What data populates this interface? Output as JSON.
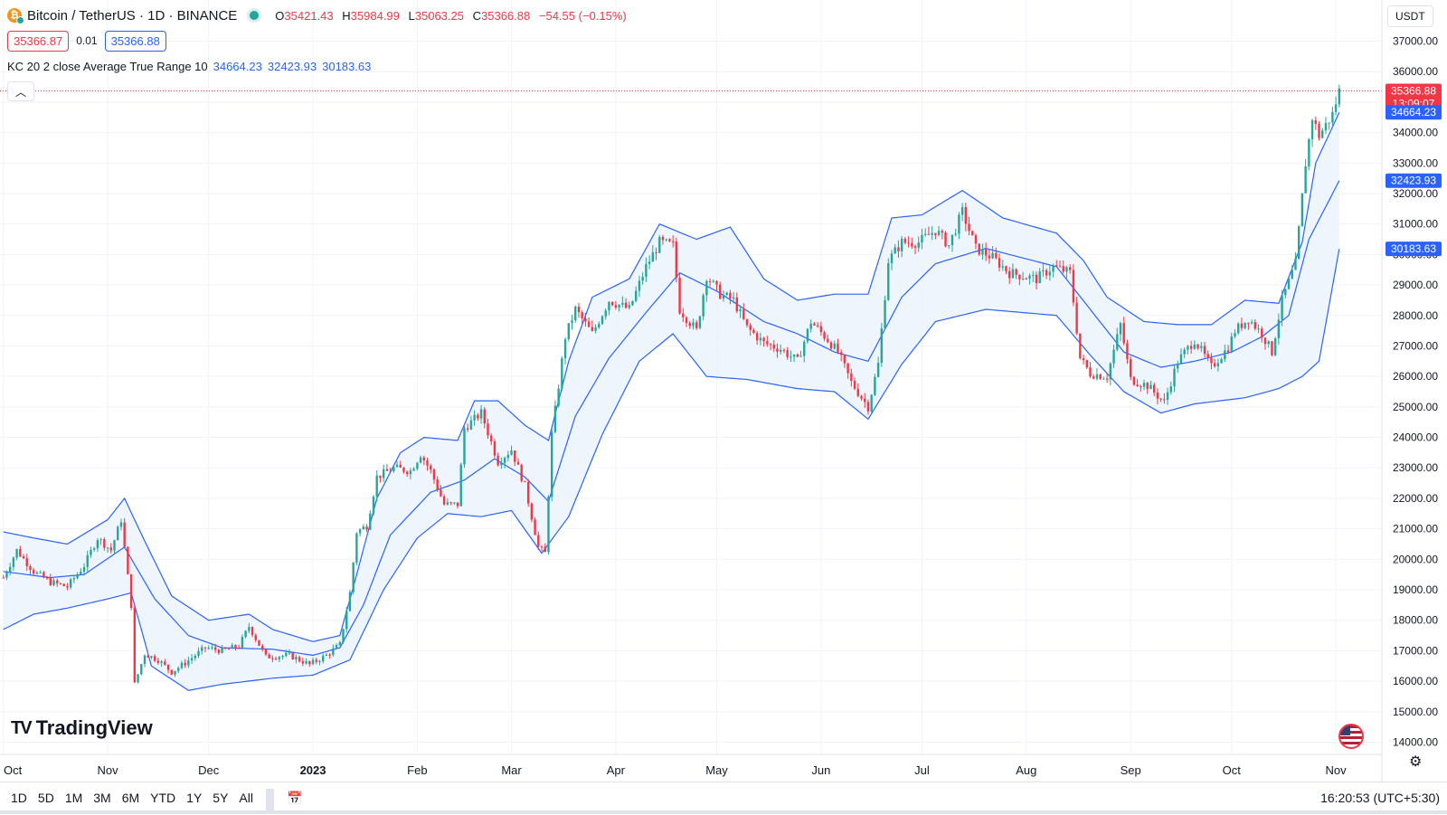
{
  "header": {
    "symbol": "Bitcoin / TetherUS · 1D · BINANCE",
    "ohlc": [
      {
        "k": "O",
        "v": "35421.43"
      },
      {
        "k": "H",
        "v": "35984.99"
      },
      {
        "k": "L",
        "v": "35063.25"
      },
      {
        "k": "C",
        "v": "35366.88"
      }
    ],
    "change": "−54.55 (−0.15%)",
    "sell_price": "35366.87",
    "spread": "0.01",
    "buy_price": "35366.88"
  },
  "indicator": {
    "label": "KC 20 2 close Average True Range 10",
    "upper": "34664.23",
    "middle": "32423.93",
    "lower": "30183.63"
  },
  "currency": "USDT",
  "bottom_bar": {
    "ranges": [
      "1D",
      "5D",
      "1M",
      "3M",
      "6M",
      "YTD",
      "1Y",
      "5Y",
      "All"
    ],
    "time": "16:20:53 (UTC+5:30)"
  },
  "watermark": "TradingView",
  "price_tags": {
    "last": "35366.88",
    "countdown": "13:09:07",
    "upper": "34664.23",
    "middle": "32423.93",
    "lower": "30183.63"
  },
  "colors": {
    "up": "#26a69a",
    "down": "#f23645",
    "band": "#2962ff",
    "fill": "#eaf3fc"
  },
  "chart_data": {
    "type": "candlestick",
    "title": "",
    "x_labels": [
      "Oct",
      "Nov",
      "Dec",
      "2023",
      "Feb",
      "Mar",
      "Apr",
      "May",
      "Jun",
      "Jul",
      "Aug",
      "Sep",
      "Oct",
      "Nov"
    ],
    "y_ticks": [
      "37000.00",
      "36000.00",
      "35000.00",
      "34000.00",
      "33000.00",
      "32000.00",
      "31000.00",
      "30000.00",
      "29000.00",
      "28000.00",
      "27000.00",
      "26000.00",
      "25000.00",
      "24000.00",
      "23000.00",
      "22000.00",
      "21000.00",
      "20000.00",
      "19000.00",
      "18000.00",
      "17000.00",
      "16000.00",
      "15000.00",
      "14000.00"
    ],
    "ylim": [
      13600,
      38350
    ],
    "grid": true,
    "close_series": {
      "name": "BTCUSDT",
      "points": [
        [
          "2022-10-01",
          19400
        ],
        [
          "2022-10-05",
          20300
        ],
        [
          "2022-10-10",
          19600
        ],
        [
          "2022-10-15",
          19250
        ],
        [
          "2022-10-20",
          19100
        ],
        [
          "2022-10-25",
          19800
        ],
        [
          "2022-10-29",
          20700
        ],
        [
          "2022-11-02",
          20300
        ],
        [
          "2022-11-05",
          21300
        ],
        [
          "2022-11-08",
          18500
        ],
        [
          "2022-11-09",
          15900
        ],
        [
          "2022-11-12",
          16900
        ],
        [
          "2022-11-16",
          16700
        ],
        [
          "2022-11-20",
          16300
        ],
        [
          "2022-11-24",
          16600
        ],
        [
          "2022-11-30",
          17100
        ],
        [
          "2022-12-05",
          17000
        ],
        [
          "2022-12-10",
          17150
        ],
        [
          "2022-12-13",
          17800
        ],
        [
          "2022-12-18",
          16800
        ],
        [
          "2022-12-25",
          16850
        ],
        [
          "2022-12-31",
          16550
        ],
        [
          "2023-01-05",
          16850
        ],
        [
          "2023-01-09",
          17200
        ],
        [
          "2023-01-12",
          18900
        ],
        [
          "2023-01-14",
          20900
        ],
        [
          "2023-01-17",
          21100
        ],
        [
          "2023-01-20",
          22700
        ],
        [
          "2023-01-25",
          23000
        ],
        [
          "2023-01-30",
          22900
        ],
        [
          "2023-02-02",
          23450
        ],
        [
          "2023-02-05",
          22900
        ],
        [
          "2023-02-09",
          21800
        ],
        [
          "2023-02-13",
          21800
        ],
        [
          "2023-02-15",
          24300
        ],
        [
          "2023-02-20",
          24800
        ],
        [
          "2023-02-25",
          23200
        ],
        [
          "2023-03-01",
          23600
        ],
        [
          "2023-03-05",
          22400
        ],
        [
          "2023-03-09",
          20400
        ],
        [
          "2023-03-11",
          20200
        ],
        [
          "2023-03-13",
          24100
        ],
        [
          "2023-03-17",
          27300
        ],
        [
          "2023-03-20",
          28200
        ],
        [
          "2023-03-25",
          27400
        ],
        [
          "2023-03-30",
          28500
        ],
        [
          "2023-04-05",
          28200
        ],
        [
          "2023-04-10",
          29600
        ],
        [
          "2023-04-14",
          30400
        ],
        [
          "2023-04-18",
          30300
        ],
        [
          "2023-04-20",
          28200
        ],
        [
          "2023-04-25",
          27500
        ],
        [
          "2023-04-28",
          29300
        ],
        [
          "2023-05-02",
          28700
        ],
        [
          "2023-05-06",
          28500
        ],
        [
          "2023-05-10",
          27600
        ],
        [
          "2023-05-15",
          27100
        ],
        [
          "2023-05-20",
          26900
        ],
        [
          "2023-05-25",
          26500
        ],
        [
          "2023-05-29",
          27800
        ],
        [
          "2023-06-03",
          27200
        ],
        [
          "2023-06-06",
          26800
        ],
        [
          "2023-06-10",
          25800
        ],
        [
          "2023-06-15",
          25000
        ],
        [
          "2023-06-18",
          26400
        ],
        [
          "2023-06-21",
          29800
        ],
        [
          "2023-06-25",
          30400
        ],
        [
          "2023-06-30",
          30400
        ],
        [
          "2023-07-05",
          30800
        ],
        [
          "2023-07-09",
          30300
        ],
        [
          "2023-07-13",
          31400
        ],
        [
          "2023-07-17",
          30200
        ],
        [
          "2023-07-22",
          29900
        ],
        [
          "2023-07-27",
          29400
        ],
        [
          "2023-07-31",
          29300
        ],
        [
          "2023-08-04",
          29200
        ],
        [
          "2023-08-09",
          29600
        ],
        [
          "2023-08-14",
          29400
        ],
        [
          "2023-08-17",
          26600
        ],
        [
          "2023-08-20",
          26100
        ],
        [
          "2023-08-25",
          26000
        ],
        [
          "2023-08-29",
          27700
        ],
        [
          "2023-09-01",
          25900
        ],
        [
          "2023-09-06",
          25700
        ],
        [
          "2023-09-11",
          25150
        ],
        [
          "2023-09-15",
          26500
        ],
        [
          "2023-09-20",
          27200
        ],
        [
          "2023-09-25",
          26300
        ],
        [
          "2023-09-30",
          26950
        ],
        [
          "2023-10-02",
          27500
        ],
        [
          "2023-10-06",
          27900
        ],
        [
          "2023-10-10",
          27400
        ],
        [
          "2023-10-13",
          26800
        ],
        [
          "2023-10-16",
          28500
        ],
        [
          "2023-10-20",
          29700
        ],
        [
          "2023-10-23",
          33000
        ],
        [
          "2023-10-25",
          34500
        ],
        [
          "2023-10-27",
          33900
        ],
        [
          "2023-10-31",
          34600
        ],
        [
          "2023-11-02",
          35367
        ]
      ]
    },
    "keltner": {
      "upper_points": [
        [
          "2022-10-01",
          20900
        ],
        [
          "2022-10-10",
          20700
        ],
        [
          "2022-10-20",
          20500
        ],
        [
          "2022-11-01",
          21300
        ],
        [
          "2022-11-06",
          22000
        ],
        [
          "2022-11-12",
          20600
        ],
        [
          "2022-11-20",
          18800
        ],
        [
          "2022-12-01",
          18000
        ],
        [
          "2022-12-13",
          18200
        ],
        [
          "2022-12-20",
          17700
        ],
        [
          "2023-01-01",
          17300
        ],
        [
          "2023-01-09",
          17500
        ],
        [
          "2023-01-14",
          19500
        ],
        [
          "2023-01-20",
          22000
        ],
        [
          "2023-01-27",
          23500
        ],
        [
          "2023-02-03",
          24000
        ],
        [
          "2023-02-13",
          23900
        ],
        [
          "2023-02-18",
          25200
        ],
        [
          "2023-02-25",
          25200
        ],
        [
          "2023-03-05",
          24400
        ],
        [
          "2023-03-12",
          23900
        ],
        [
          "2023-03-18",
          26500
        ],
        [
          "2023-03-25",
          28600
        ],
        [
          "2023-04-05",
          29200
        ],
        [
          "2023-04-14",
          31000
        ],
        [
          "2023-04-25",
          30500
        ],
        [
          "2023-05-05",
          30900
        ],
        [
          "2023-05-15",
          29200
        ],
        [
          "2023-05-25",
          28500
        ],
        [
          "2023-06-05",
          28700
        ],
        [
          "2023-06-15",
          28700
        ],
        [
          "2023-06-22",
          31200
        ],
        [
          "2023-07-01",
          31300
        ],
        [
          "2023-07-13",
          32100
        ],
        [
          "2023-07-25",
          31200
        ],
        [
          "2023-08-10",
          30700
        ],
        [
          "2023-08-18",
          29800
        ],
        [
          "2023-08-25",
          28600
        ],
        [
          "2023-09-05",
          27800
        ],
        [
          "2023-09-15",
          27700
        ],
        [
          "2023-09-25",
          27700
        ],
        [
          "2023-10-05",
          28500
        ],
        [
          "2023-10-15",
          28400
        ],
        [
          "2023-10-22",
          30400
        ],
        [
          "2023-10-26",
          33000
        ],
        [
          "2023-11-02",
          34664
        ]
      ],
      "middle_points": [
        [
          "2022-10-01",
          19600
        ],
        [
          "2022-10-15",
          19400
        ],
        [
          "2022-10-25",
          19500
        ],
        [
          "2022-11-06",
          20400
        ],
        [
          "2022-11-15",
          18700
        ],
        [
          "2022-11-25",
          17500
        ],
        [
          "2022-12-05",
          17100
        ],
        [
          "2022-12-20",
          17050
        ],
        [
          "2023-01-01",
          16850
        ],
        [
          "2023-01-09",
          17100
        ],
        [
          "2023-01-16",
          18500
        ],
        [
          "2023-01-24",
          20800
        ],
        [
          "2023-02-05",
          22200
        ],
        [
          "2023-02-15",
          22600
        ],
        [
          "2023-02-24",
          23300
        ],
        [
          "2023-03-05",
          22700
        ],
        [
          "2023-03-12",
          21900
        ],
        [
          "2023-03-20",
          24700
        ],
        [
          "2023-03-30",
          26600
        ],
        [
          "2023-04-10",
          28100
        ],
        [
          "2023-04-20",
          29400
        ],
        [
          "2023-05-01",
          28800
        ],
        [
          "2023-05-15",
          27800
        ],
        [
          "2023-05-25",
          27400
        ],
        [
          "2023-06-05",
          26800
        ],
        [
          "2023-06-15",
          26500
        ],
        [
          "2023-06-25",
          28600
        ],
        [
          "2023-07-05",
          29700
        ],
        [
          "2023-07-20",
          30200
        ],
        [
          "2023-08-10",
          29600
        ],
        [
          "2023-08-20",
          28200
        ],
        [
          "2023-08-30",
          26800
        ],
        [
          "2023-09-10",
          26300
        ],
        [
          "2023-09-20",
          26500
        ],
        [
          "2023-10-01",
          26800
        ],
        [
          "2023-10-10",
          27300
        ],
        [
          "2023-10-18",
          28000
        ],
        [
          "2023-10-24",
          30500
        ],
        [
          "2023-11-02",
          32424
        ]
      ],
      "lower_points": [
        [
          "2022-10-01",
          17700
        ],
        [
          "2022-10-10",
          18200
        ],
        [
          "2022-10-20",
          18400
        ],
        [
          "2022-11-01",
          18700
        ],
        [
          "2022-11-08",
          18900
        ],
        [
          "2022-11-14",
          16500
        ],
        [
          "2022-11-25",
          15700
        ],
        [
          "2022-12-05",
          15900
        ],
        [
          "2022-12-20",
          16100
        ],
        [
          "2023-01-01",
          16200
        ],
        [
          "2023-01-12",
          16700
        ],
        [
          "2023-01-22",
          19000
        ],
        [
          "2023-02-01",
          20700
        ],
        [
          "2023-02-10",
          21500
        ],
        [
          "2023-02-20",
          21400
        ],
        [
          "2023-03-01",
          21600
        ],
        [
          "2023-03-10",
          20200
        ],
        [
          "2023-03-18",
          21400
        ],
        [
          "2023-03-28",
          24100
        ],
        [
          "2023-04-08",
          26500
        ],
        [
          "2023-04-18",
          27400
        ],
        [
          "2023-04-28",
          26000
        ],
        [
          "2023-05-10",
          25900
        ],
        [
          "2023-05-25",
          25600
        ],
        [
          "2023-06-05",
          25500
        ],
        [
          "2023-06-15",
          24600
        ],
        [
          "2023-06-25",
          26400
        ],
        [
          "2023-07-05",
          27800
        ],
        [
          "2023-07-20",
          28200
        ],
        [
          "2023-08-10",
          28000
        ],
        [
          "2023-08-20",
          26700
        ],
        [
          "2023-08-30",
          25500
        ],
        [
          "2023-09-10",
          24800
        ],
        [
          "2023-09-20",
          25100
        ],
        [
          "2023-10-05",
          25300
        ],
        [
          "2023-10-15",
          25600
        ],
        [
          "2023-10-22",
          26000
        ],
        [
          "2023-10-27",
          26500
        ],
        [
          "2023-11-02",
          30184
        ]
      ]
    }
  }
}
